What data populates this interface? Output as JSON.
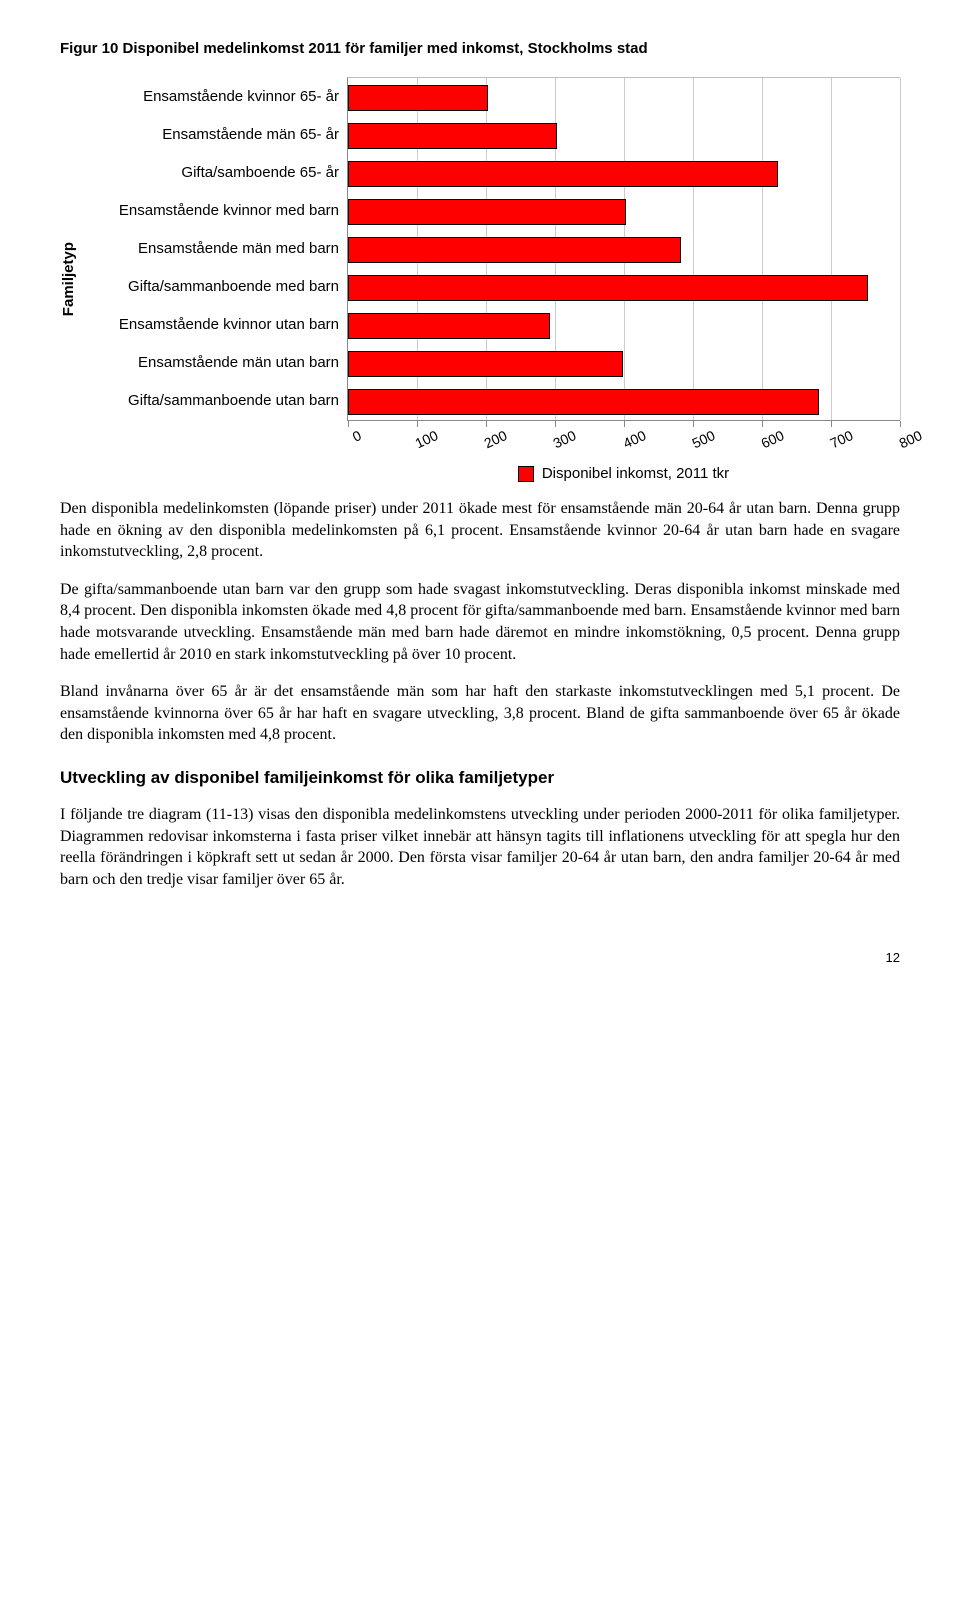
{
  "figure": {
    "title": "Figur 10 Disponibel medelinkomst 2011 för familjer med inkomst, Stockholms stad",
    "y_axis_label": "Familjetyp",
    "categories": [
      "Ensamstående kvinnor 65- år",
      "Ensamstående män 65- år",
      "Gifta/samboende 65- år",
      "Ensamstående kvinnor med barn",
      "Ensamstående män med barn",
      "Gifta/sammanboende med barn",
      "Ensamstående kvinnor utan barn",
      "Ensamstående män utan barn",
      "Gifta/sammanboende utan barn"
    ],
    "values": [
      200,
      300,
      620,
      400,
      480,
      750,
      290,
      395,
      680
    ],
    "xmax": 800,
    "ticks": [
      0,
      100,
      200,
      300,
      400,
      500,
      600,
      700,
      800
    ],
    "bar_color": "#ff0000",
    "bar_border": "#000000",
    "grid_color": "#cccccc",
    "legend_label": "Disponibel inkomst, 2011 tkr"
  },
  "paragraphs": {
    "p1": "Den disponibla medelinkomsten (löpande priser) under 2011 ökade mest för ensamstående män 20-64 år utan barn. Denna grupp hade en ökning av den disponibla medelinkomsten på 6,1 procent. Ensamstående kvinnor 20-64 år utan barn hade en svagare inkomstutveckling, 2,8 procent.",
    "p2": "De gifta/sammanboende utan barn var den grupp som hade svagast inkomstutveckling. Deras disponibla inkomst minskade med 8,4 procent. Den disponibla inkomsten ökade med 4,8 procent för gifta/sammanboende med barn. Ensamstående kvinnor med barn hade motsvarande utveckling. Ensamstående män med barn hade däremot en mindre inkomstökning, 0,5 procent. Denna grupp hade emellertid år 2010 en stark inkomstutveckling på över 10 procent.",
    "p3": "Bland invånarna över 65 år är det ensamstående män som har haft den starkaste inkomstutvecklingen med 5,1 procent. De ensamstående kvinnorna över 65 år har haft en svagare utveckling, 3,8 procent. Bland de gifta sammanboende över 65 år ökade den disponibla inkomsten med 4,8 procent.",
    "heading": "Utveckling av disponibel familjeinkomst för olika familjetyper",
    "p4": "I följande tre diagram (11-13) visas den disponibla medelinkomstens utveckling under perioden 2000-2011 för olika familjetyper. Diagrammen redovisar inkomsterna i fasta priser vilket innebär att hänsyn tagits till inflationens utveckling för att spegla hur den reella förändringen i köpkraft sett ut sedan år 2000. Den första visar familjer 20-64 år utan barn, den andra familjer 20-64 år med barn och den tredje visar familjer över 65 år."
  },
  "page_number": "12"
}
